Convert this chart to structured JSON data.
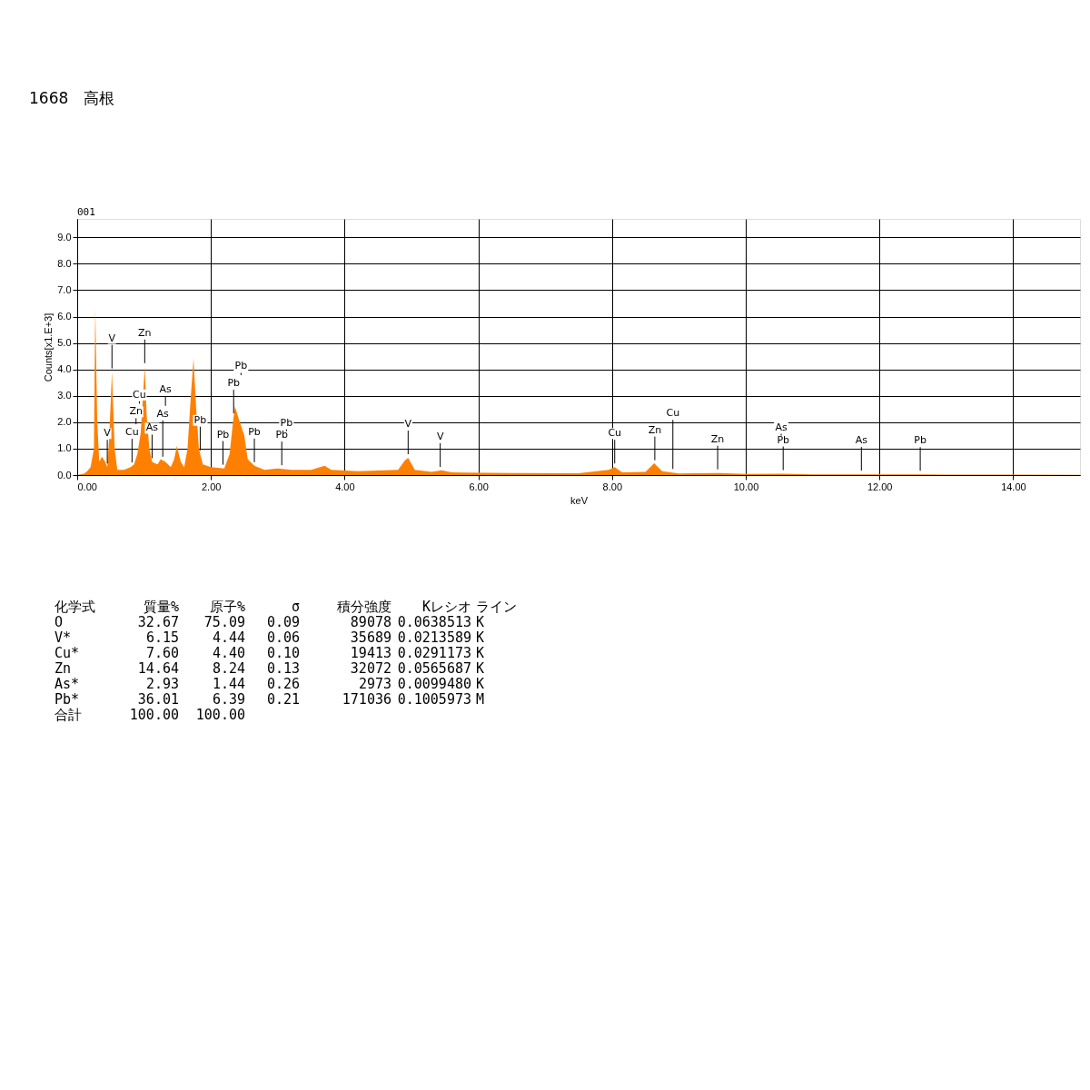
{
  "chart_data": {
    "type": "area",
    "title": "1668　高根",
    "xlabel": "keV",
    "ylabel": "Counts[x1.E+3]",
    "x": [
      0,
      0.1,
      0.15,
      0.2,
      0.25,
      0.27,
      0.3,
      0.33,
      0.37,
      0.42,
      0.45,
      0.48,
      0.52,
      0.56,
      0.6,
      0.7,
      0.8,
      0.85,
      0.9,
      0.95,
      0.98,
      1.01,
      1.04,
      1.08,
      1.12,
      1.2,
      1.25,
      1.32,
      1.4,
      1.45,
      1.49,
      1.55,
      1.6,
      1.65,
      1.7,
      1.74,
      1.78,
      1.82,
      1.88,
      2.0,
      2.2,
      2.28,
      2.33,
      2.36,
      2.42,
      2.5,
      2.55,
      2.65,
      2.8,
      3.0,
      3.2,
      3.5,
      3.7,
      3.8,
      4.2,
      4.8,
      4.9,
      4.95,
      5.05,
      5.3,
      5.45,
      5.6,
      6.5,
      7.5,
      7.95,
      8.04,
      8.15,
      8.5,
      8.63,
      8.75,
      9.0,
      9.6,
      10.0,
      10.55,
      11,
      12,
      13,
      14,
      15
    ],
    "series": [
      {
        "color": "#ff8000",
        "values": [
          0,
          0.05,
          0.15,
          0.3,
          1.0,
          6.3,
          2.0,
          0.5,
          0.7,
          0.5,
          0.3,
          1.5,
          3.9,
          1.0,
          0.2,
          0.2,
          0.3,
          0.4,
          0.8,
          1.6,
          2.8,
          4.1,
          2.2,
          1.0,
          0.5,
          0.4,
          0.6,
          0.5,
          0.3,
          0.6,
          1.1,
          0.5,
          0.3,
          1.0,
          3.0,
          4.4,
          2.5,
          1.0,
          0.4,
          0.3,
          0.25,
          0.8,
          2.0,
          2.6,
          2.1,
          1.5,
          0.6,
          0.35,
          0.2,
          0.25,
          0.2,
          0.2,
          0.35,
          0.2,
          0.15,
          0.2,
          0.55,
          0.65,
          0.2,
          0.12,
          0.18,
          0.1,
          0.08,
          0.07,
          0.2,
          0.3,
          0.1,
          0.12,
          0.45,
          0.15,
          0.06,
          0.08,
          0.04,
          0.05,
          0.03,
          0.03,
          0.02,
          0.02,
          0.01
        ]
      }
    ],
    "xlim": [
      0,
      15
    ],
    "ylim": [
      0,
      9.7
    ],
    "xticks": [
      {
        "value": 0,
        "label": "0.00"
      },
      {
        "value": 2,
        "label": "2.00"
      },
      {
        "value": 4,
        "label": "4.00"
      },
      {
        "value": 6,
        "label": "6.00"
      },
      {
        "value": 8,
        "label": "8.00"
      },
      {
        "value": 10,
        "label": "10.00"
      },
      {
        "value": 12,
        "label": "12.00"
      },
      {
        "value": 14,
        "label": "14.00"
      }
    ],
    "yticks": [
      {
        "value": 0,
        "label": "0.0"
      },
      {
        "value": 1,
        "label": "1.0"
      },
      {
        "value": 2,
        "label": "2.0"
      },
      {
        "value": 3,
        "label": "3.0"
      },
      {
        "value": 4,
        "label": "4.0"
      },
      {
        "value": 5,
        "label": "5.0"
      },
      {
        "value": 6,
        "label": "6.0"
      },
      {
        "value": 7,
        "label": "7.0"
      },
      {
        "value": 8,
        "label": "8.0"
      },
      {
        "value": 9,
        "label": "9.0"
      }
    ],
    "grid": true,
    "ref_lines": [
      {
        "axis": "x",
        "value": 0.52,
        "label": "V"
      },
      {
        "axis": "x",
        "value": 1.01,
        "label": "Zn"
      },
      {
        "axis": "x",
        "value": 0.45,
        "label": "V"
      },
      {
        "axis": "x",
        "value": 0.82,
        "label": "Cu"
      },
      {
        "axis": "x",
        "value": 0.88,
        "label": "Zn"
      },
      {
        "axis": "x",
        "value": 0.93,
        "label": "Cu"
      },
      {
        "axis": "x",
        "value": 1.12,
        "label": "As"
      },
      {
        "axis": "x",
        "value": 1.28,
        "label": "As"
      },
      {
        "axis": "x",
        "value": 1.32,
        "label": "As"
      },
      {
        "axis": "x",
        "value": 1.84,
        "label": "Pb"
      },
      {
        "axis": "x",
        "value": 2.18,
        "label": "Pb"
      },
      {
        "axis": "x",
        "value": 2.34,
        "label": "Pb"
      },
      {
        "axis": "x",
        "value": 2.45,
        "label": "Pb"
      },
      {
        "axis": "x",
        "value": 2.65,
        "label": "Pb"
      },
      {
        "axis": "x",
        "value": 3.06,
        "label": "Pb"
      },
      {
        "axis": "x",
        "value": 3.13,
        "label": "Pb"
      },
      {
        "axis": "x",
        "value": 4.95,
        "label": "V"
      },
      {
        "axis": "x",
        "value": 5.43,
        "label": "V"
      },
      {
        "axis": "x",
        "value": 8.04,
        "label": "Cu"
      },
      {
        "axis": "x",
        "value": 8.64,
        "label": "Zn"
      },
      {
        "axis": "x",
        "value": 8.91,
        "label": "Cu"
      },
      {
        "axis": "x",
        "value": 9.58,
        "label": "Zn"
      },
      {
        "axis": "x",
        "value": 10.56,
        "label": "Pb"
      },
      {
        "axis": "x",
        "value": 10.53,
        "label": "As"
      },
      {
        "axis": "x",
        "value": 11.73,
        "label": "As"
      },
      {
        "axis": "x",
        "value": 12.61,
        "label": "Pb"
      }
    ],
    "annotations": [
      "001",
      "化学式",
      "質量%",
      "原子%",
      "σ",
      "積分強度",
      "Kレシオ",
      "ライン",
      "O",
      "32.67",
      "75.09",
      "0.09",
      "89078",
      "0.0638513",
      "K",
      "V*",
      "6.15",
      "4.44",
      "0.06",
      "35689",
      "0.0213589",
      "K",
      "Cu*",
      "7.60",
      "4.40",
      "0.10",
      "19413",
      "0.0291173",
      "K",
      "Zn",
      "14.64",
      "8.24",
      "0.13",
      "32072",
      "0.0565687",
      "K",
      "As*",
      "2.93",
      "1.44",
      "0.26",
      "2973",
      "0.0099480",
      "K",
      "Pb*",
      "36.01",
      "6.39",
      "0.21",
      "171036",
      "0.1005973",
      "M",
      "合計",
      "100.00",
      "100.00"
    ]
  }
}
